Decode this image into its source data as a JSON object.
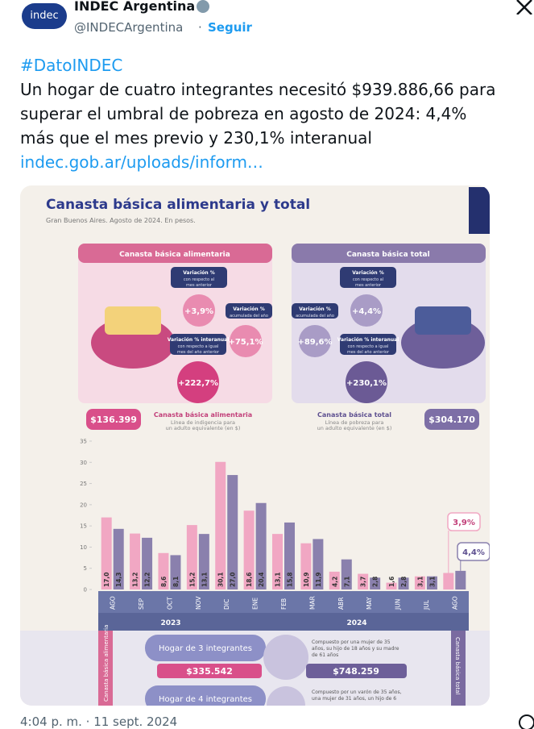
{
  "tweet": {
    "logo": "indec",
    "author": "INDEC Argentina",
    "handle": "@INDECArgentina",
    "separator": "·",
    "follow": "Seguir",
    "hashtag": "#DatoINDEC",
    "lines": [
      "Un hogar de cuatro integrantes necesitó $939.886,66 para",
      "superar el umbral de pobreza en agosto de 2024: 4,4%",
      "más que el mes previo y 230,1% interanual"
    ],
    "link": "indec.gob.ar/uploads/inform…",
    "timestamp": "4:04 p. m. · 11 sept. 2024"
  },
  "infographic": {
    "title": "Canasta básica alimentaria y total",
    "subtitle": "Gran Buenos Aires. Agosto de 2024. En pesos.",
    "panels": [
      {
        "header": "Canasta básica alimentaria",
        "monthly": {
          "label": "Variación %",
          "note": [
            "con respecto al",
            "mes anterior"
          ],
          "value": "+3,9%"
        },
        "ytd": {
          "label": "Variación %",
          "note": [
            "acumulada del año"
          ],
          "value": "+75,1%"
        },
        "yoy": {
          "label": "Variación % interanual",
          "note": [
            "con respecto a igual",
            "mes del año anterior"
          ],
          "value": "+222,7%"
        },
        "price": "$136.399",
        "price_title": "Canasta básica alimentaria",
        "price_note": [
          "Línea de indigencia para",
          "un adulto equivalente (en $)"
        ]
      },
      {
        "header": "Canasta básica total",
        "monthly": {
          "label": "Variación %",
          "note": [
            "con respecto al",
            "mes anterior"
          ],
          "value": "+4,4%"
        },
        "ytd": {
          "label": "Variación %",
          "note": [
            "acumulada del año"
          ],
          "value": "+89,6%"
        },
        "yoy": {
          "label": "Variación % interanual",
          "note": [
            "con respecto a igual",
            "mes del año anterior"
          ],
          "value": "+230,1%"
        },
        "price": "$304.170",
        "price_title": "Canasta básica total",
        "price_note": [
          "Línea de pobreza para",
          "un adulto equivalente (en $)"
        ]
      }
    ],
    "households": [
      {
        "label": "Hogar de 3 integrantes",
        "cba": "$335.542",
        "cbt": "$748.259",
        "note": [
          "Compuesto por una mujer de 35",
          "años, su hijo de 18 años y su madre",
          "de 61 años"
        ]
      },
      {
        "label": "Hogar de 4 integrantes",
        "note": [
          "Compuesto por un varón de 35 años,",
          "una mujer de 31 años, un hijo de 6"
        ]
      }
    ],
    "side_labels": [
      "Canasta básica alimentaria",
      "Canasta básica total"
    ]
  },
  "chart_data": {
    "type": "bar",
    "categories": [
      "AGO",
      "SEP",
      "OCT",
      "NOV",
      "DIC",
      "ENE",
      "FEB",
      "MAR",
      "ABR",
      "MAY",
      "JUN",
      "JUL",
      "AGO"
    ],
    "year_labels": [
      "2023",
      "2024"
    ],
    "series": [
      {
        "color": "#f1a7c3",
        "values": [
          17.0,
          13.2,
          8.6,
          15.2,
          30.1,
          18.6,
          13.1,
          10.9,
          4.2,
          3.7,
          1.6,
          3.1,
          3.9
        ],
        "value_labels": [
          "17,0",
          "13,2",
          "8,6",
          "15,2",
          "30,1",
          "18,6",
          "13,1",
          "10,9",
          "4,2",
          "3,7",
          "1,6",
          "3,1",
          "3,9%"
        ]
      },
      {
        "color": "#8a80ad",
        "values": [
          14.3,
          12.2,
          8.1,
          13.1,
          27.0,
          20.4,
          15.8,
          11.9,
          7.1,
          2.8,
          2.8,
          3.1,
          4.4
        ],
        "value_labels": [
          "14,3",
          "12,2",
          "8,1",
          "13,1",
          "27,0",
          "20,4",
          "15,8",
          "11,9",
          "7,1",
          "2,8",
          "2,8",
          "3,1",
          "4,4%"
        ]
      }
    ],
    "ylim": [
      0,
      35
    ],
    "yticks": [
      0,
      5,
      10,
      15,
      20,
      25,
      30,
      35
    ]
  }
}
